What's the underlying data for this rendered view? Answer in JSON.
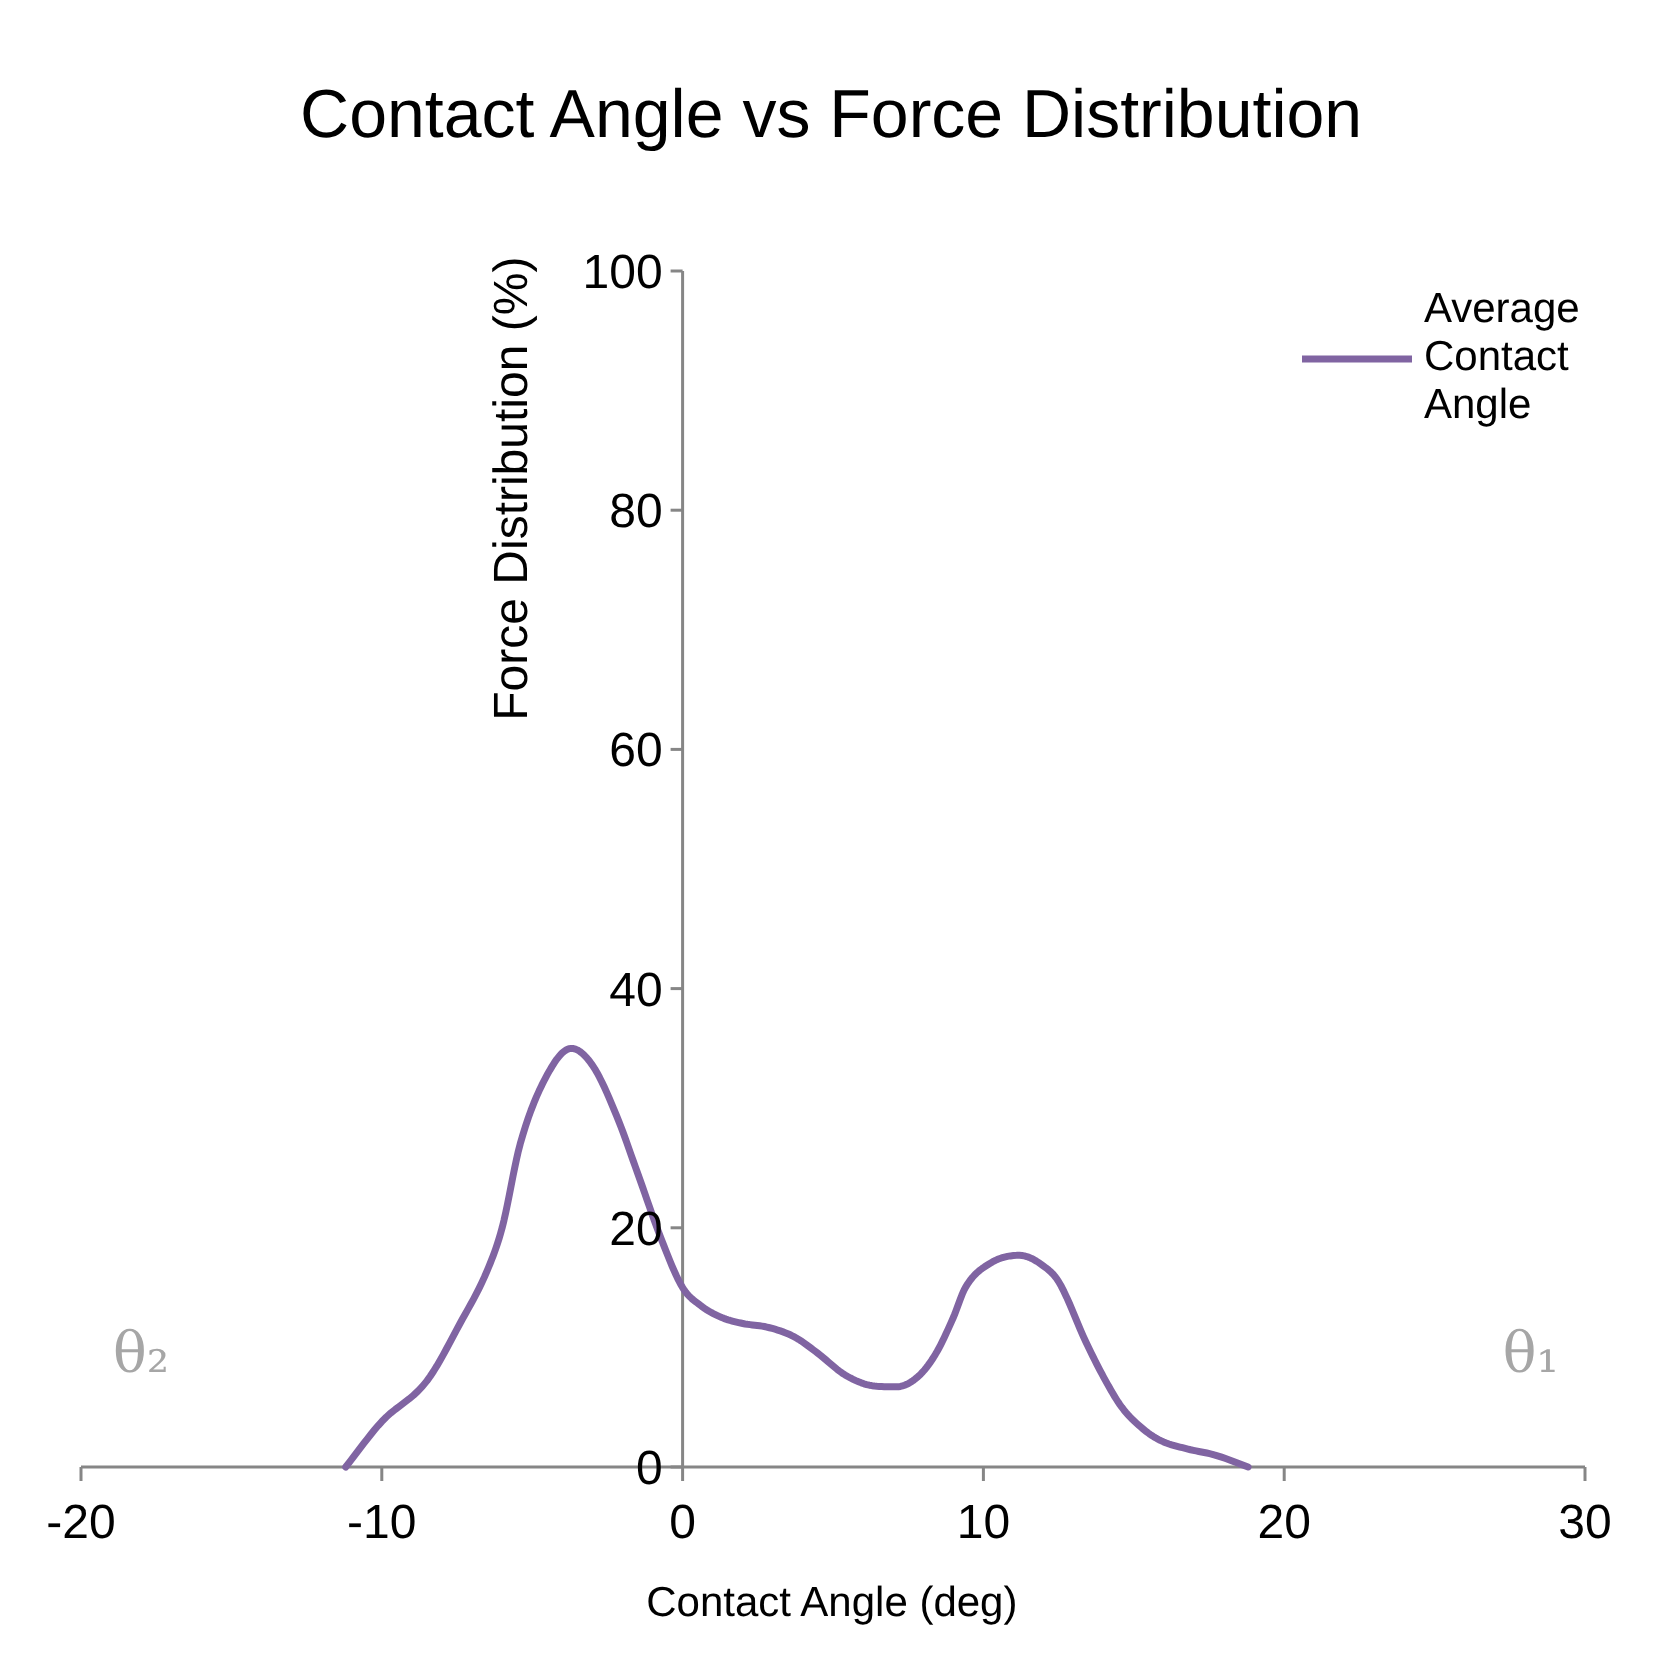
{
  "chart_data": {
    "type": "line",
    "title": "Contact Angle vs Force Distribution",
    "xlabel": "Contact Angle (deg)",
    "ylabel": "Force Distribution (%)",
    "x": [
      -11.2,
      -10,
      -8.5,
      -7.4,
      -6.5,
      -6,
      -5.4,
      -4.5,
      -3.7,
      -3,
      -2.2,
      -1.5,
      -0.7,
      0,
      0.6,
      1.3,
      2,
      2.8,
      3.7,
      4.5,
      5.4,
      6.3,
      7.1,
      7.8,
      8.4,
      9,
      9.4,
      10.2,
      11.2,
      12,
      12.5,
      13.4,
      14,
      14.6,
      15.3,
      15.9,
      16.8,
      17.7,
      18.8
    ],
    "series": [
      {
        "name": "Average Contact Angle",
        "color": "#8064a2",
        "values": [
          0,
          3.8,
          7.2,
          12,
          16.4,
          20,
          27,
          32.8,
          35,
          33.6,
          29.4,
          24.6,
          19,
          15,
          13.5,
          12.5,
          12,
          11.7,
          10.9,
          9.5,
          7.7,
          6.8,
          6.7,
          7.5,
          9.4,
          12.5,
          15,
          17,
          17.7,
          16.8,
          15.5,
          10.5,
          7.5,
          5,
          3.2,
          2.2,
          1.5,
          1,
          0
        ]
      }
    ],
    "xlim": [
      -20,
      30
    ],
    "xticks": [
      -20,
      -10,
      0,
      10,
      20,
      30
    ],
    "ylim": [
      0,
      100
    ],
    "yticks": [
      0,
      20,
      40,
      60,
      80,
      100
    ],
    "grid": false,
    "legend": "top right",
    "marker": "none",
    "line_style": "solid",
    "annotations": [
      "θ₂",
      "θ₁"
    ]
  }
}
